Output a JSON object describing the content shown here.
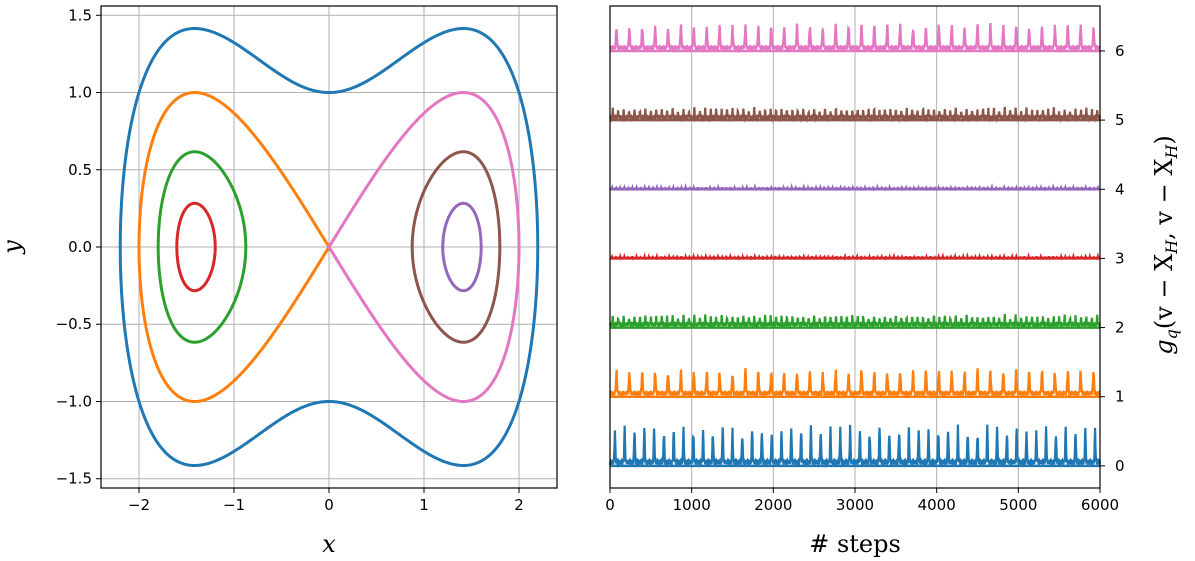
{
  "chart_data": [
    {
      "type": "line",
      "title": "",
      "xlabel": "x",
      "ylabel": "y",
      "xlim": [
        -2.4,
        2.4
      ],
      "ylim": [
        -1.56,
        1.56
      ],
      "xticks": [
        -2,
        -1,
        0,
        1,
        2
      ],
      "xtick_labels": [
        "−2",
        "−1",
        "0",
        "1",
        "2"
      ],
      "yticks": [
        -1.5,
        -1.0,
        -0.5,
        0.0,
        0.5,
        1.0,
        1.5
      ],
      "ytick_labels": [
        "−1.5",
        "−1.0",
        "−0.5",
        "0.0",
        "0.5",
        "1.0",
        "1.5"
      ],
      "grid": true,
      "curve_family": "H(x,y) = y^2/2 + (x^2 - 2)^2/8 (double-well level sets)",
      "series": [
        {
          "color": "#1f77b4",
          "energy": 1.0,
          "side": "both"
        },
        {
          "color": "#ff7f0e",
          "energy": 0.5,
          "side": "left"
        },
        {
          "color": "#e377c2",
          "energy": 0.5,
          "side": "right"
        },
        {
          "color": "#2ca02c",
          "energy": 0.19,
          "side": "left"
        },
        {
          "color": "#8c564b",
          "energy": 0.19,
          "side": "right"
        },
        {
          "color": "#d62728",
          "energy": 0.04,
          "side": "left"
        },
        {
          "color": "#9467bd",
          "energy": 0.04,
          "side": "right"
        }
      ]
    },
    {
      "type": "line",
      "title": "",
      "xlabel": "# steps",
      "ylabel": "g_q(v − X_H, v − X_H)",
      "ylabel_parts": {
        "g": "g",
        "sub": "q",
        "rest": "(v − X",
        "sub2": "H",
        "mid": ", v − X",
        "sub3": "H",
        "end": ")"
      },
      "xlim": [
        0,
        6000
      ],
      "ylim": [
        -0.32,
        6.65
      ],
      "xticks": [
        0,
        1000,
        2000,
        3000,
        4000,
        5000,
        6000
      ],
      "xtick_labels": [
        "0",
        "1000",
        "2000",
        "3000",
        "4000",
        "5000",
        "6000"
      ],
      "yticks": [
        0,
        1,
        2,
        3,
        4,
        5,
        6
      ],
      "ytick_labels": [
        "0",
        "1",
        "2",
        "3",
        "4",
        "5",
        "6"
      ],
      "yaxis_side": "right",
      "grid": true,
      "n_steps": 6000,
      "series": [
        {
          "color": "#1f77b4",
          "offset": 0,
          "baseline": 0.05,
          "spike_height": 0.45,
          "n_spikes": 50,
          "noise": 0.06
        },
        {
          "color": "#ff7f0e",
          "offset": 1,
          "baseline": 0.08,
          "spike_height": 0.3,
          "n_spikes": 38,
          "noise": 0.04
        },
        {
          "color": "#2ca02c",
          "offset": 2,
          "baseline": 0.07,
          "spike_height": 0.12,
          "n_spikes": 90,
          "noise": 0.04
        },
        {
          "color": "#d62728",
          "offset": 3,
          "baseline": 0.0,
          "spike_height": 0.02,
          "n_spikes": 120,
          "noise": 0.01
        },
        {
          "color": "#9467bd",
          "offset": 4,
          "baseline": 0.0,
          "spike_height": 0.02,
          "n_spikes": 120,
          "noise": 0.01
        },
        {
          "color": "#8c564b",
          "offset": 5,
          "baseline": 0.05,
          "spike_height": 0.12,
          "n_spikes": 90,
          "noise": 0.04
        },
        {
          "color": "#e377c2",
          "offset": 6,
          "baseline": 0.07,
          "spike_height": 0.3,
          "n_spikes": 38,
          "noise": 0.04
        }
      ]
    }
  ]
}
